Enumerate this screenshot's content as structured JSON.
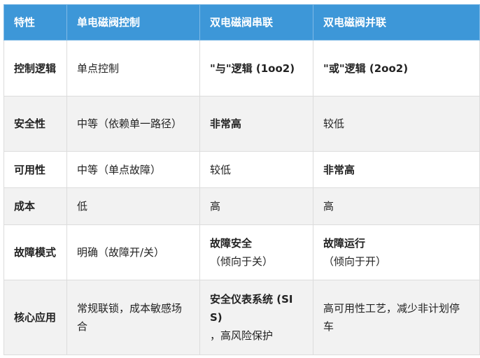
{
  "table": {
    "headers": [
      "特性",
      "单电磁阀控制",
      "双电磁阀串联",
      "双电磁阀并联"
    ],
    "rows": [
      {
        "label": "控制逻辑",
        "cells": [
          [
            {
              "text": "单点控制",
              "bold": false
            }
          ],
          [
            {
              "text": "\"与\"逻辑 (1oo2)",
              "bold": true
            }
          ],
          [
            {
              "text": "\"或\"逻辑 (2oo2)",
              "bold": true
            }
          ]
        ]
      },
      {
        "label": "安全性",
        "cells": [
          [
            {
              "text": "中等（依赖单一路径）",
              "bold": false
            }
          ],
          [
            {
              "text": "非常高",
              "bold": true
            }
          ],
          [
            {
              "text": "较低",
              "bold": false
            }
          ]
        ]
      },
      {
        "label": "可用性",
        "cells": [
          [
            {
              "text": "中等（单点故障）",
              "bold": false
            }
          ],
          [
            {
              "text": "较低",
              "bold": false
            }
          ],
          [
            {
              "text": "非常高",
              "bold": true
            }
          ]
        ]
      },
      {
        "label": "成本",
        "cells": [
          [
            {
              "text": "低",
              "bold": false
            }
          ],
          [
            {
              "text": "高",
              "bold": false
            }
          ],
          [
            {
              "text": "高",
              "bold": false
            }
          ]
        ]
      },
      {
        "label": "故障模式",
        "cells": [
          [
            {
              "text": "明确（故障开/关）",
              "bold": false
            }
          ],
          [
            {
              "text": "故障安全",
              "bold": true
            },
            {
              "text": "（倾向于关）",
              "bold": false
            }
          ],
          [
            {
              "text": "故障运行",
              "bold": true
            },
            {
              "text": "（倾向于开）",
              "bold": false
            }
          ]
        ]
      },
      {
        "label": "核心应用",
        "cells": [
          [
            {
              "text": "常规联锁，成本敏感场合",
              "bold": false
            }
          ],
          [
            {
              "text": "安全仪表系统 (SIS)",
              "bold": true
            },
            {
              "text": "，高风险保护",
              "bold": false
            }
          ],
          [
            {
              "text": "高可用性工艺，减少非计划停车",
              "bold": false
            }
          ]
        ]
      }
    ]
  },
  "colors": {
    "header_bg": "#3d97d8",
    "alt_row_bg": "#f2f2f2"
  }
}
